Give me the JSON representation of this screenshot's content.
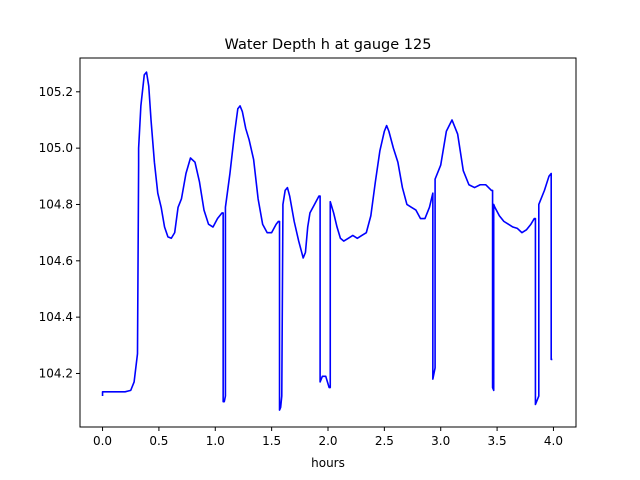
{
  "chart_data": {
    "type": "line",
    "title": "Water Depth h at gauge 125",
    "xlabel": "hours",
    "ylabel": "",
    "xlim": [
      -0.2,
      4.2
    ],
    "ylim": [
      104.01,
      105.32
    ],
    "grid": false,
    "x_ticks": [
      0.0,
      0.5,
      1.0,
      1.5,
      2.0,
      2.5,
      3.0,
      3.5,
      4.0
    ],
    "x_tick_labels": [
      "0.0",
      "0.5",
      "1.0",
      "1.5",
      "2.0",
      "2.5",
      "3.0",
      "3.5",
      "4.0"
    ],
    "y_ticks": [
      104.2,
      104.4,
      104.6,
      104.8,
      105.0,
      105.2
    ],
    "y_tick_labels": [
      "104.2",
      "104.4",
      "104.6",
      "104.8",
      "105.0",
      "105.2"
    ],
    "series": [
      {
        "color": "#0000ff",
        "x": [
          0.0,
          0.0,
          0.02,
          0.1,
          0.2,
          0.25,
          0.28,
          0.31,
          0.32,
          0.32,
          0.34,
          0.37,
          0.39,
          0.41,
          0.43,
          0.46,
          0.49,
          0.52,
          0.55,
          0.58,
          0.61,
          0.64,
          0.67,
          0.7,
          0.74,
          0.78,
          0.82,
          0.86,
          0.9,
          0.94,
          0.98,
          1.02,
          1.06,
          1.07,
          1.07,
          1.08,
          1.09,
          1.09,
          1.1,
          1.13,
          1.17,
          1.2,
          1.22,
          1.24,
          1.27,
          1.3,
          1.34,
          1.38,
          1.42,
          1.46,
          1.5,
          1.54,
          1.56,
          1.57,
          1.57,
          1.58,
          1.59,
          1.6,
          1.6,
          1.62,
          1.64,
          1.66,
          1.7,
          1.74,
          1.78,
          1.8,
          1.82,
          1.84,
          1.88,
          1.92,
          1.93,
          1.93,
          1.95,
          1.98,
          2.01,
          2.02,
          2.02,
          2.05,
          2.08,
          2.11,
          2.14,
          2.18,
          2.22,
          2.26,
          2.3,
          2.34,
          2.38,
          2.42,
          2.46,
          2.5,
          2.52,
          2.54,
          2.58,
          2.62,
          2.66,
          2.7,
          2.74,
          2.78,
          2.82,
          2.86,
          2.9,
          2.93,
          2.93,
          2.94,
          2.95,
          2.95,
          3.0,
          3.05,
          3.1,
          3.15,
          3.2,
          3.25,
          3.3,
          3.35,
          3.4,
          3.45,
          3.46,
          3.46,
          3.47,
          3.47,
          3.48,
          3.52,
          3.56,
          3.6,
          3.64,
          3.68,
          3.72,
          3.76,
          3.8,
          3.83,
          3.84,
          3.84,
          3.87,
          3.87,
          3.92,
          3.96,
          3.98,
          3.98,
          3.99
        ],
        "y": [
          104.12,
          104.135,
          104.135,
          104.135,
          104.135,
          104.14,
          104.17,
          104.27,
          104.94,
          105.0,
          105.15,
          105.26,
          105.27,
          105.22,
          105.1,
          104.95,
          104.84,
          104.79,
          104.72,
          104.685,
          104.68,
          104.7,
          104.79,
          104.82,
          104.91,
          104.965,
          104.95,
          104.88,
          104.78,
          104.73,
          104.72,
          104.75,
          104.77,
          104.77,
          104.1,
          104.1,
          104.12,
          104.79,
          104.82,
          104.91,
          105.05,
          105.14,
          105.15,
          105.13,
          105.07,
          105.03,
          104.96,
          104.82,
          104.73,
          104.7,
          104.7,
          104.73,
          104.74,
          104.74,
          104.07,
          104.08,
          104.12,
          104.78,
          104.8,
          104.85,
          104.86,
          104.83,
          104.74,
          104.67,
          104.61,
          104.63,
          104.72,
          104.77,
          104.8,
          104.83,
          104.83,
          104.17,
          104.19,
          104.19,
          104.15,
          104.15,
          104.81,
          104.77,
          104.72,
          104.68,
          104.67,
          104.68,
          104.69,
          104.68,
          104.69,
          104.7,
          104.76,
          104.88,
          104.99,
          105.06,
          105.08,
          105.06,
          105.0,
          104.95,
          104.86,
          104.8,
          104.79,
          104.78,
          104.75,
          104.75,
          104.79,
          104.84,
          104.18,
          104.2,
          104.22,
          104.89,
          104.94,
          105.06,
          105.1,
          105.05,
          104.92,
          104.87,
          104.86,
          104.87,
          104.87,
          104.85,
          104.85,
          104.15,
          104.14,
          104.8,
          104.79,
          104.76,
          104.74,
          104.73,
          104.72,
          104.715,
          104.7,
          104.71,
          104.73,
          104.75,
          104.75,
          104.09,
          104.12,
          104.8,
          104.85,
          104.9,
          104.91,
          104.25,
          104.25
        ]
      }
    ]
  }
}
